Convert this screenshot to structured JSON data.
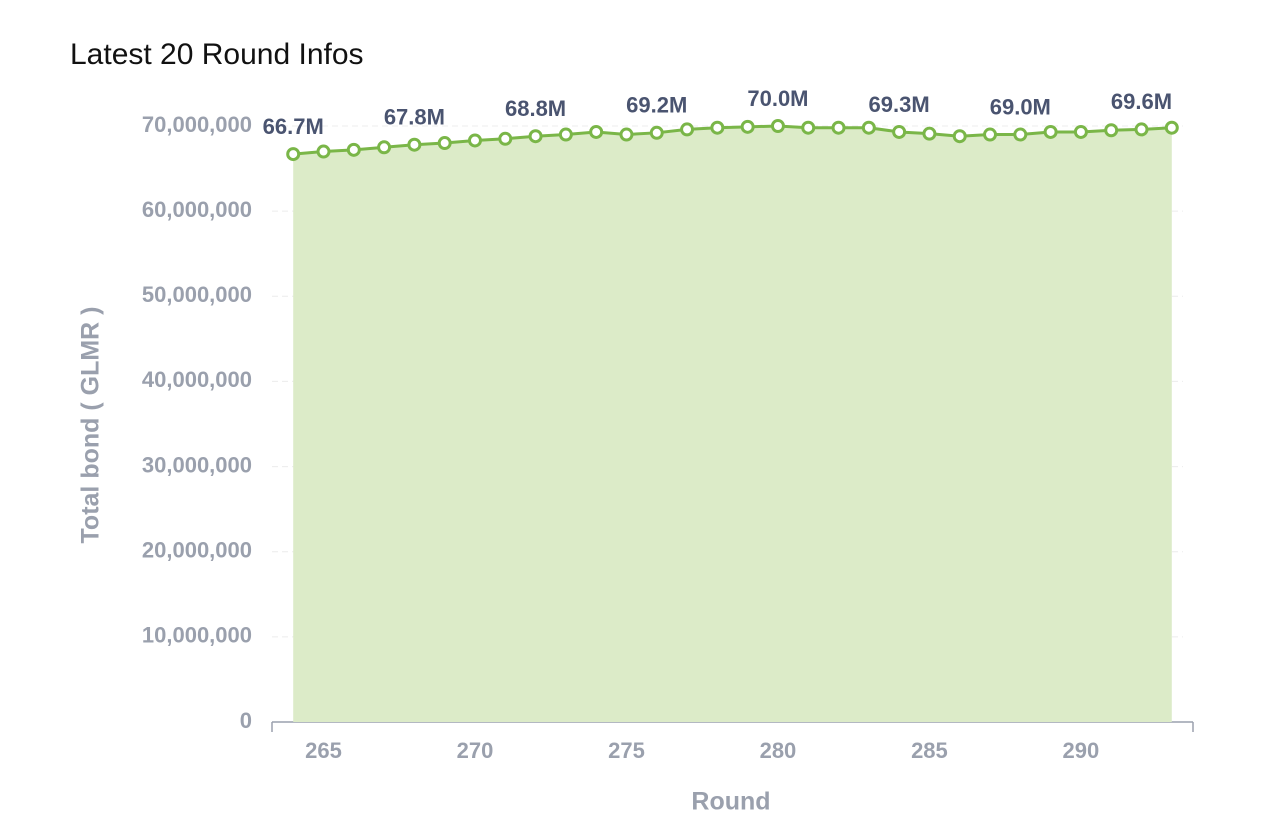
{
  "chart_data": {
    "type": "line",
    "title": "Latest 20 Round Infos",
    "x_label": "Round",
    "y_label": "Total bond ( GLMR )",
    "x": [
      264,
      265,
      266,
      267,
      268,
      269,
      270,
      271,
      272,
      273,
      274,
      275,
      276,
      277,
      278,
      279,
      280,
      281,
      282,
      283,
      284,
      285,
      286,
      287,
      288,
      289,
      290,
      291,
      292,
      293
    ],
    "values": [
      66700000,
      67000000,
      67200000,
      67500000,
      67800000,
      68000000,
      68300000,
      68500000,
      68800000,
      69000000,
      69300000,
      69000000,
      69200000,
      69600000,
      69800000,
      69900000,
      70000000,
      69800000,
      69800000,
      69800000,
      69300000,
      69100000,
      68800000,
      69000000,
      69000000,
      69300000,
      69300000,
      69500000,
      69600000,
      69800000
    ],
    "value_labels": [
      "66.7M",
      null,
      null,
      null,
      "67.8M",
      null,
      null,
      null,
      "68.8M",
      null,
      null,
      null,
      "69.2M",
      null,
      null,
      null,
      "70.0M",
      null,
      null,
      null,
      "69.3M",
      null,
      null,
      null,
      "69.0M",
      null,
      null,
      null,
      "69.6M",
      null
    ],
    "color": "#7ab648",
    "area_color": "#dcebc8",
    "xlim": [
      263.3,
      293.7
    ],
    "xticks": [
      265,
      270,
      275,
      280,
      285,
      290
    ],
    "ylim": [
      0,
      70000000
    ],
    "yticks": [
      0,
      {
        "value": 10000000,
        "label": "10,000,000"
      },
      {
        "value": 20000000,
        "label": "20,000,000"
      },
      {
        "value": 30000000,
        "label": "30,000,000"
      },
      {
        "value": 40000000,
        "label": "40,000,000"
      },
      {
        "value": 50000000,
        "label": "50,000,000"
      },
      {
        "value": 60000000,
        "label": "60,000,000"
      },
      {
        "value": 70000000,
        "label": "70,000,000"
      }
    ],
    "grid": true
  }
}
